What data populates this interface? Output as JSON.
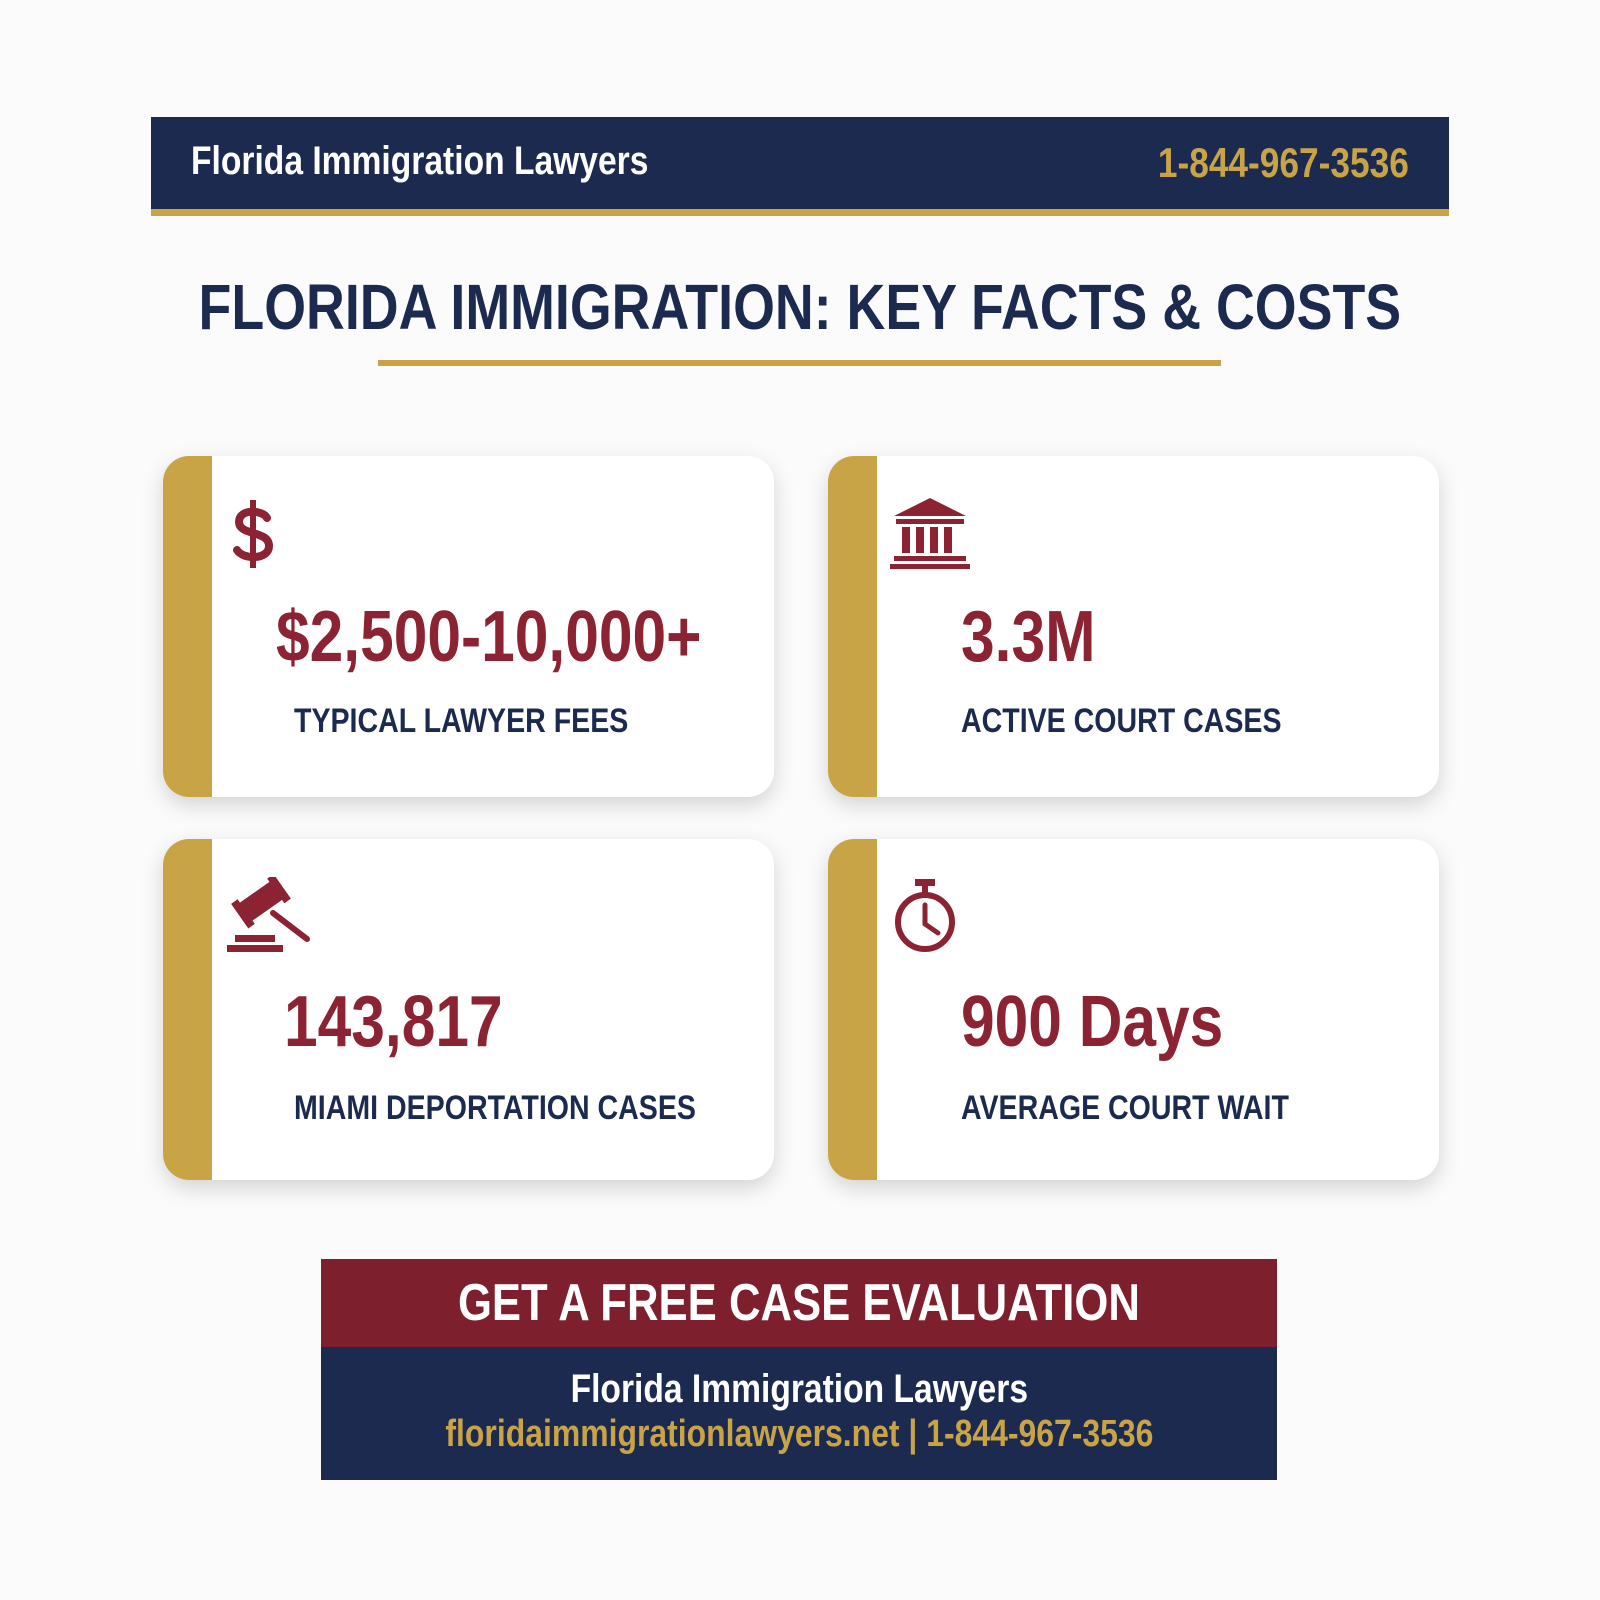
{
  "header": {
    "brand": "Florida Immigration Lawyers",
    "phone": "1-844-967-3536"
  },
  "title": "FLORIDA IMMIGRATION: KEY FACTS & COSTS",
  "cards": [
    {
      "value": "$2,500-10,000+",
      "label": "TYPICAL LAWYER FEES"
    },
    {
      "value": "3.3M",
      "label": "ACTIVE COURT CASES"
    },
    {
      "value": "143,817",
      "label": "MIAMI DEPORTATION CASES"
    },
    {
      "value": "900 Days",
      "label": "AVERAGE COURT WAIT"
    }
  ],
  "cta": {
    "heading": "GET A FREE CASE EVALUATION",
    "firm": "Florida Immigration Lawyers",
    "website": "floridaimmigrationlawyers.net",
    "separator": "|",
    "phone": "1-844-967-3536"
  }
}
